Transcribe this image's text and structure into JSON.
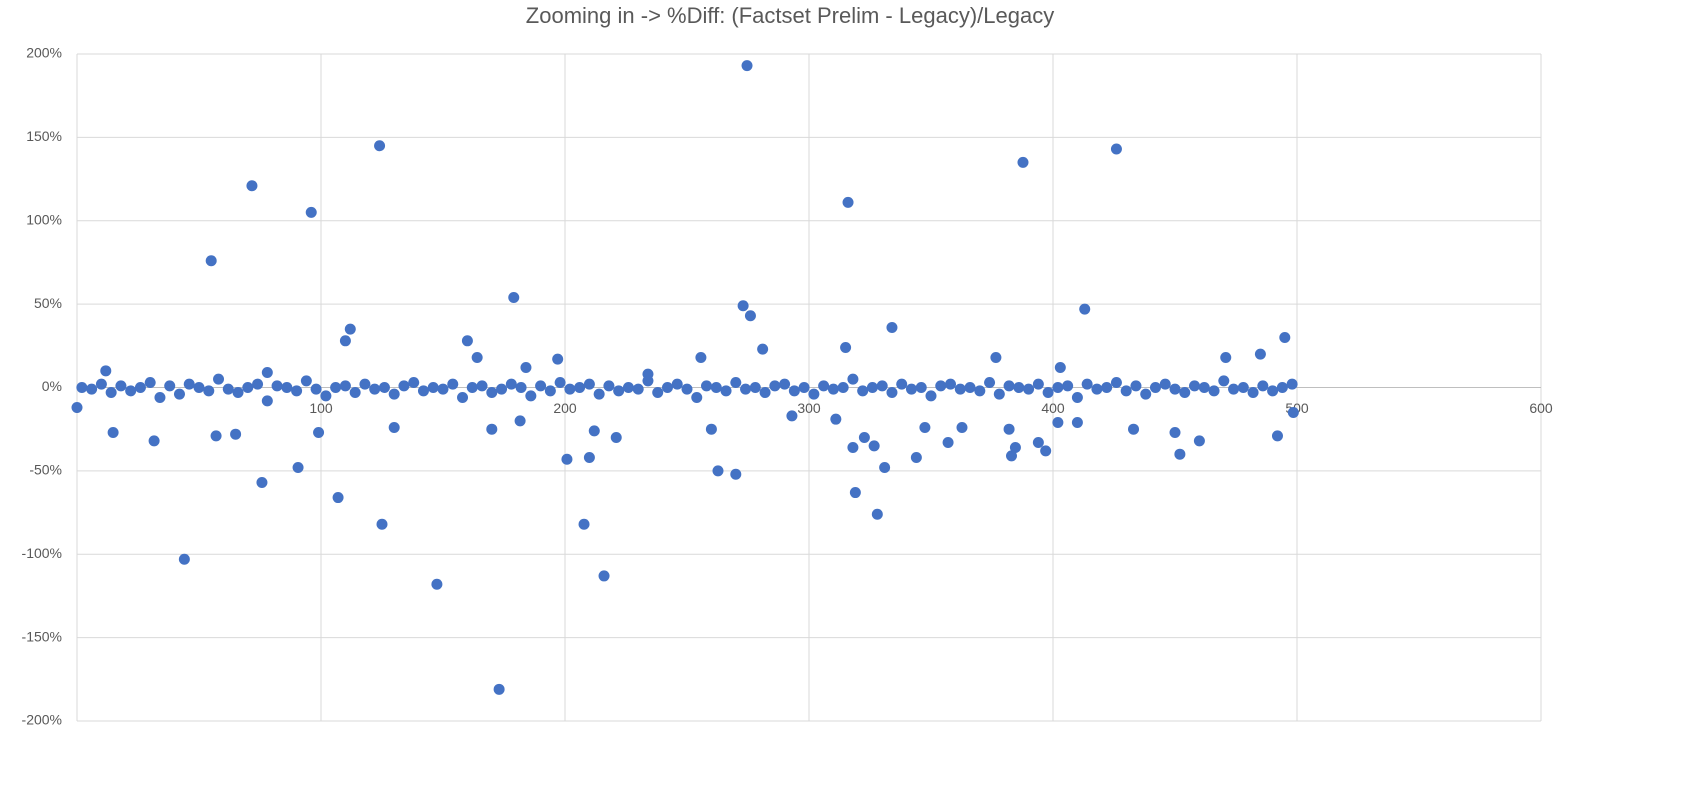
{
  "chart_data": {
    "type": "scatter",
    "title": "Zooming in -> %Diff: (Factset Prelim - Legacy)/Legacy",
    "xlim": [
      0,
      600
    ],
    "xticks": [
      0,
      100,
      200,
      300,
      400,
      500,
      600
    ],
    "ylim": [
      -200,
      200
    ],
    "yticks": [
      {
        "value": -200,
        "label": "-200%"
      },
      {
        "value": -150,
        "label": "-150%"
      },
      {
        "value": -100,
        "label": "-100%"
      },
      {
        "value": -50,
        "label": "-50%"
      },
      {
        "value": 0,
        "label": "0%"
      },
      {
        "value": 50,
        "label": "50%"
      },
      {
        "value": 100,
        "label": "100%"
      },
      {
        "value": 150,
        "label": "150%"
      },
      {
        "value": 200,
        "label": "200%"
      }
    ],
    "grid": true,
    "series": [
      {
        "color": "#4472c4",
        "x": [
          0,
          11.8,
          14.8,
          31.6,
          44,
          55,
          57,
          65,
          71.7,
          75.8,
          78,
          90.6,
          96,
          99,
          107,
          110,
          112,
          124,
          125,
          130,
          147.5,
          160,
          164,
          170,
          173,
          179,
          181.6,
          184,
          197,
          200.8,
          207.8,
          210,
          212,
          216,
          221,
          234,
          255.7,
          260,
          262.7,
          270,
          273,
          274.6,
          276,
          281,
          293,
          311,
          315,
          316,
          318,
          319,
          322.7,
          326.7,
          328,
          331,
          334,
          344,
          347.5,
          357,
          362.7,
          376.6,
          383,
          384.6,
          387.7,
          382,
          394,
          397,
          403,
          402,
          410,
          413,
          426,
          433,
          450,
          452,
          460,
          470.8,
          485,
          492,
          495,
          498.5,
          2,
          6,
          10,
          14,
          18,
          22,
          26,
          30,
          34,
          38,
          42,
          46,
          50,
          54,
          58,
          62,
          66,
          70,
          74,
          78,
          82,
          86,
          90,
          94,
          98,
          102,
          106,
          110,
          114,
          118,
          122,
          126,
          130,
          134,
          138,
          142,
          146,
          150,
          154,
          158,
          162,
          166,
          170,
          174,
          178,
          182,
          186,
          190,
          194,
          198,
          202,
          206,
          210,
          214,
          218,
          222,
          226,
          230,
          234,
          238,
          242,
          246,
          250,
          254,
          258,
          262,
          266,
          270,
          274,
          278,
          282,
          286,
          290,
          294,
          298,
          302,
          306,
          310,
          314,
          318,
          322,
          326,
          330,
          334,
          338,
          342,
          346,
          350,
          354,
          358,
          362,
          366,
          370,
          374,
          378,
          382,
          386,
          390,
          394,
          398,
          402,
          406,
          410,
          414,
          418,
          422,
          426,
          430,
          434,
          438,
          442,
          446,
          450,
          454,
          458,
          462,
          466,
          470,
          474,
          478,
          482,
          486,
          490,
          494,
          498
        ],
        "values": [
          -12,
          10,
          -27,
          -32,
          -103,
          76,
          -29,
          -28,
          121,
          -57,
          9,
          -48,
          105,
          -27,
          -66,
          28,
          35,
          145,
          -82,
          -24,
          -118,
          28,
          18,
          -25,
          -181,
          54,
          -20,
          12,
          17,
          -43,
          -82,
          -42,
          -26,
          -113,
          -30,
          8,
          18,
          -25,
          -50,
          -52,
          49,
          193,
          43,
          23,
          -17,
          -19,
          24,
          111,
          -36,
          -63,
          -30,
          -35,
          -76,
          -48,
          36,
          -42,
          -24,
          -33,
          -24,
          18,
          -41,
          -36,
          135,
          -25,
          -33,
          -38,
          12,
          -21,
          -21,
          47,
          143,
          -25,
          -27,
          -40,
          -32,
          18,
          20,
          -29,
          30,
          -15,
          0,
          -1,
          2,
          -3,
          1,
          -2,
          0,
          3,
          -6,
          1,
          -4,
          2,
          0,
          -2,
          5,
          -1,
          -3,
          0,
          2,
          -8,
          1,
          0,
          -2,
          4,
          -1,
          -5,
          0,
          1,
          -3,
          2,
          -1,
          0,
          -4,
          1,
          3,
          -2,
          0,
          -1,
          2,
          -6,
          0,
          1,
          -3,
          -1,
          2,
          0,
          -5,
          1,
          -2,
          3,
          -1,
          0,
          2,
          -4,
          1,
          -2,
          0,
          -1,
          4,
          -3,
          0,
          2,
          -1,
          -6,
          1,
          0,
          -2,
          3,
          -1,
          0,
          -3,
          1,
          2,
          -2,
          0,
          -4,
          1,
          -1,
          0,
          5,
          -2,
          0,
          1,
          -3,
          2,
          -1,
          0,
          -5,
          1,
          2,
          -1,
          0,
          -2,
          3,
          -4,
          1,
          0,
          -1,
          2,
          -3,
          0,
          1,
          -6,
          2,
          -1,
          0,
          3,
          -2,
          1,
          -4,
          0,
          2,
          -1,
          -3,
          1,
          0,
          -2,
          4,
          -1,
          0,
          -3,
          1,
          -2,
          0,
          2
        ]
      }
    ]
  }
}
